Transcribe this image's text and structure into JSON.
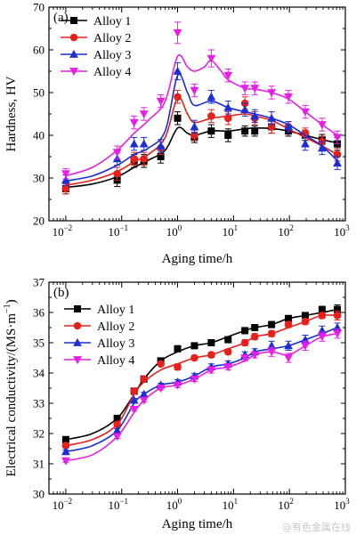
{
  "watermark": "@有色金属在线",
  "chart_data": [
    {
      "panel_label": "(a)",
      "type": "line",
      "xscale": "log",
      "xlabel": "Aging time/h",
      "ylabel": "Hardness, HV",
      "xlim": [
        0.005,
        1000
      ],
      "ylim": [
        20,
        70
      ],
      "yticks": [
        20,
        30,
        40,
        50,
        60,
        70
      ],
      "xticks": [
        {
          "v": 0.01,
          "b": "10",
          "e": "−2"
        },
        {
          "v": 0.1,
          "b": "10",
          "e": "−1"
        },
        {
          "v": 1,
          "b": "10",
          "e": "0"
        },
        {
          "v": 10,
          "b": "10",
          "e": "1"
        },
        {
          "v": 100,
          "b": "10",
          "e": "2"
        },
        {
          "v": 1000,
          "b": "10",
          "e": "3"
        }
      ],
      "legend": "top-left",
      "x": [
        0.01,
        0.083,
        0.167,
        0.25,
        0.5,
        1,
        2,
        4,
        8,
        16,
        24,
        48,
        96,
        192,
        384,
        720
      ],
      "series": [
        {
          "name": "Alloy 1",
          "color": "#000000",
          "marker": "square",
          "values": [
            27.5,
            29.5,
            34,
            34,
            35,
            44,
            39.5,
            41,
            40,
            41,
            41,
            42,
            41,
            40,
            39,
            38
          ],
          "err": [
            1.2,
            1.5,
            1.5,
            1.5,
            1.5,
            1.5,
            1.2,
            1.5,
            1.5,
            1.2,
            1.2,
            1.5,
            1.2,
            1.2,
            1.2,
            1.5
          ],
          "curve": [
            [
              0.01,
              27.8
            ],
            [
              0.03,
              28.6
            ],
            [
              0.083,
              30.3
            ],
            [
              0.167,
              32.5
            ],
            [
              0.3,
              34.2
            ],
            [
              0.6,
              36.5
            ],
            [
              1,
              41.7
            ],
            [
              1.5,
              40.5
            ],
            [
              2,
              40
            ],
            [
              4,
              41
            ],
            [
              8,
              41
            ],
            [
              16,
              41.5
            ],
            [
              24,
              41.7
            ],
            [
              48,
              41.6
            ],
            [
              96,
              41
            ],
            [
              192,
              40
            ],
            [
              384,
              39
            ],
            [
              720,
              38.2
            ]
          ]
        },
        {
          "name": "Alloy 2",
          "color": "#e8201c",
          "marker": "circle",
          "values": [
            27.5,
            31,
            34.5,
            34.5,
            37,
            49,
            40,
            44.5,
            44,
            47.5,
            44,
            42,
            42,
            40.5,
            38.5,
            35.5
          ],
          "err": [
            1.2,
            1.5,
            1.5,
            1.5,
            1.5,
            1.5,
            1.2,
            1.5,
            1.5,
            1.5,
            1.5,
            1.5,
            1.2,
            1.2,
            1.2,
            1.5
          ],
          "curve": [
            [
              0.01,
              28.3
            ],
            [
              0.03,
              29.5
            ],
            [
              0.083,
              31.5
            ],
            [
              0.167,
              33.8
            ],
            [
              0.3,
              35.5
            ],
            [
              0.6,
              39.5
            ],
            [
              1,
              48.8
            ],
            [
              1.5,
              45
            ],
            [
              2,
              43
            ],
            [
              4,
              44
            ],
            [
              8,
              44.5
            ],
            [
              16,
              45
            ],
            [
              24,
              44.5
            ],
            [
              48,
              43.5
            ],
            [
              96,
              41.5
            ],
            [
              192,
              39.5
            ],
            [
              384,
              37.5
            ],
            [
              720,
              35.5
            ]
          ]
        },
        {
          "name": "Alloy 3",
          "color": "#1b2fd6",
          "marker": "triangle-up",
          "values": [
            29.5,
            34.5,
            38,
            38,
            37.5,
            55,
            42,
            49,
            46.5,
            46,
            44.5,
            44,
            42,
            38,
            37,
            33.5
          ],
          "err": [
            1.2,
            1.5,
            1.5,
            1.5,
            1.5,
            2.0,
            1.5,
            1.5,
            1.5,
            1.5,
            1.5,
            1.5,
            1.2,
            1.5,
            1.5,
            1.5
          ],
          "curve": [
            [
              0.01,
              29.3
            ],
            [
              0.03,
              30.5
            ],
            [
              0.083,
              33
            ],
            [
              0.167,
              35.5
            ],
            [
              0.3,
              37
            ],
            [
              0.6,
              41
            ],
            [
              1,
              54
            ],
            [
              1.5,
              50
            ],
            [
              2,
              47
            ],
            [
              4,
              48
            ],
            [
              8,
              46.5
            ],
            [
              16,
              45.5
            ],
            [
              24,
              45
            ],
            [
              48,
              44
            ],
            [
              96,
              42.5
            ],
            [
              192,
              40
            ],
            [
              384,
              37.5
            ],
            [
              720,
              34
            ]
          ]
        },
        {
          "name": "Alloy 4",
          "color": "#e91ee6",
          "marker": "triangle-down",
          "values": [
            31,
            36,
            43,
            45,
            48,
            64,
            50.5,
            58,
            54,
            51,
            51,
            50,
            49,
            45.5,
            42.5,
            39.5
          ],
          "err": [
            1.2,
            1.5,
            1.5,
            1.5,
            1.5,
            2.5,
            1.5,
            2.0,
            1.5,
            1.5,
            1.5,
            1.5,
            1.5,
            1.5,
            1.5,
            1.5
          ],
          "curve": [
            [
              0.01,
              30.5
            ],
            [
              0.03,
              32.5
            ],
            [
              0.083,
              36.5
            ],
            [
              0.167,
              40.5
            ],
            [
              0.3,
              43.5
            ],
            [
              0.6,
              48
            ],
            [
              1,
              58.5
            ],
            [
              1.5,
              56
            ],
            [
              2,
              55
            ],
            [
              3,
              56
            ],
            [
              4,
              57.5
            ],
            [
              6,
              55
            ],
            [
              8,
              53
            ],
            [
              16,
              51
            ],
            [
              24,
              50.8
            ],
            [
              48,
              50
            ],
            [
              96,
              48.5
            ],
            [
              192,
              45.5
            ],
            [
              384,
              42.5
            ],
            [
              720,
              40
            ]
          ]
        }
      ]
    },
    {
      "panel_label": "(b)",
      "type": "line",
      "xscale": "log",
      "xlabel": "Aging time/h",
      "ylabel": "Electrical conductivity/(MS·m",
      "ylabel_sup": "−1",
      "ylabel_end": ")",
      "xlim": [
        0.005,
        1000
      ],
      "ylim": [
        30,
        37
      ],
      "yticks": [
        30,
        31,
        32,
        33,
        34,
        35,
        36,
        37
      ],
      "xticks": [
        {
          "v": 0.01,
          "b": "10",
          "e": "−2"
        },
        {
          "v": 0.1,
          "b": "10",
          "e": "−1"
        },
        {
          "v": 1,
          "b": "10",
          "e": "0"
        },
        {
          "v": 10,
          "b": "10",
          "e": "1"
        },
        {
          "v": 100,
          "b": "10",
          "e": "2"
        },
        {
          "v": 1000,
          "b": "10",
          "e": "3"
        }
      ],
      "legend": "top-left",
      "x": [
        0.01,
        0.083,
        0.167,
        0.25,
        0.5,
        1,
        2,
        4,
        8,
        16,
        24,
        48,
        96,
        192,
        384,
        720
      ],
      "series": [
        {
          "name": "Alloy 1",
          "color": "#000000",
          "marker": "square",
          "values": [
            31.8,
            32.5,
            33.4,
            33.8,
            34.4,
            34.8,
            34.9,
            35,
            35.1,
            35.4,
            35.5,
            35.6,
            35.8,
            35.9,
            36.1,
            36.1
          ],
          "err": [
            0.06,
            0.06,
            0.06,
            0.06,
            0.06,
            0.1,
            0.08,
            0.08,
            0.08,
            0.1,
            0.1,
            0.1,
            0.1,
            0.1,
            0.1,
            0.15
          ],
          "curve": [
            [
              0.01,
              31.8
            ],
            [
              0.03,
              32
            ],
            [
              0.083,
              32.5
            ],
            [
              0.167,
              33.3
            ],
            [
              0.25,
              33.8
            ],
            [
              0.5,
              34.4
            ],
            [
              1,
              34.7
            ],
            [
              2,
              34.9
            ],
            [
              4,
              35
            ],
            [
              8,
              35.2
            ],
            [
              16,
              35.4
            ],
            [
              24,
              35.5
            ],
            [
              48,
              35.6
            ],
            [
              96,
              35.8
            ],
            [
              192,
              35.9
            ],
            [
              384,
              36
            ],
            [
              720,
              36.1
            ]
          ]
        },
        {
          "name": "Alloy 2",
          "color": "#e8201c",
          "marker": "circle",
          "values": [
            31.6,
            32.3,
            33.4,
            33.8,
            34.3,
            34.2,
            34.5,
            34.6,
            34.7,
            35,
            35.2,
            35.3,
            35.6,
            35.7,
            35.9,
            35.9
          ],
          "err": [
            0.06,
            0.06,
            0.06,
            0.06,
            0.06,
            0.1,
            0.08,
            0.08,
            0.08,
            0.1,
            0.1,
            0.1,
            0.1,
            0.1,
            0.1,
            0.15
          ],
          "curve": [
            [
              0.01,
              31.6
            ],
            [
              0.03,
              31.8
            ],
            [
              0.083,
              32.3
            ],
            [
              0.167,
              33.3
            ],
            [
              0.25,
              33.7
            ],
            [
              0.5,
              34.1
            ],
            [
              1,
              34.3
            ],
            [
              2,
              34.5
            ],
            [
              4,
              34.6
            ],
            [
              8,
              34.8
            ],
            [
              16,
              35
            ],
            [
              24,
              35.2
            ],
            [
              48,
              35.3
            ],
            [
              96,
              35.5
            ],
            [
              192,
              35.7
            ],
            [
              384,
              35.9
            ],
            [
              720,
              35.9
            ]
          ]
        },
        {
          "name": "Alloy 3",
          "color": "#1b2fd6",
          "marker": "triangle-up",
          "values": [
            31.4,
            32.1,
            33.1,
            33.3,
            33.6,
            33.7,
            33.9,
            34.2,
            34.3,
            34.6,
            34.7,
            34.9,
            34.9,
            35.1,
            35.4,
            35.5
          ],
          "err": [
            0.06,
            0.06,
            0.06,
            0.06,
            0.06,
            0.08,
            0.08,
            0.1,
            0.1,
            0.1,
            0.1,
            0.15,
            0.15,
            0.15,
            0.15,
            0.15
          ],
          "curve": [
            [
              0.01,
              31.4
            ],
            [
              0.03,
              31.6
            ],
            [
              0.083,
              32.1
            ],
            [
              0.167,
              33
            ],
            [
              0.25,
              33.3
            ],
            [
              0.5,
              33.6
            ],
            [
              1,
              33.7
            ],
            [
              2,
              33.9
            ],
            [
              4,
              34.2
            ],
            [
              8,
              34.3
            ],
            [
              16,
              34.5
            ],
            [
              24,
              34.7
            ],
            [
              48,
              34.8
            ],
            [
              96,
              34.9
            ],
            [
              192,
              35.1
            ],
            [
              384,
              35.3
            ],
            [
              720,
              35.5
            ]
          ]
        },
        {
          "name": "Alloy 4",
          "color": "#e91ee6",
          "marker": "triangle-down",
          "values": [
            31.1,
            31.9,
            32.8,
            33.1,
            33.5,
            33.6,
            33.8,
            34.1,
            34.2,
            34.5,
            34.6,
            34.7,
            34.5,
            34.9,
            35.2,
            35.3
          ],
          "err": [
            0.06,
            0.06,
            0.06,
            0.06,
            0.06,
            0.08,
            0.08,
            0.1,
            0.1,
            0.1,
            0.1,
            0.15,
            0.15,
            0.15,
            0.15,
            0.15
          ],
          "curve": [
            [
              0.01,
              31.1
            ],
            [
              0.03,
              31.3
            ],
            [
              0.083,
              31.9
            ],
            [
              0.167,
              32.7
            ],
            [
              0.25,
              33.1
            ],
            [
              0.5,
              33.5
            ],
            [
              1,
              33.6
            ],
            [
              2,
              33.8
            ],
            [
              4,
              34.1
            ],
            [
              8,
              34.2
            ],
            [
              16,
              34.4
            ],
            [
              24,
              34.6
            ],
            [
              48,
              34.7
            ],
            [
              96,
              34.6
            ],
            [
              192,
              34.9
            ],
            [
              384,
              35.2
            ],
            [
              720,
              35.3
            ]
          ]
        }
      ]
    }
  ]
}
